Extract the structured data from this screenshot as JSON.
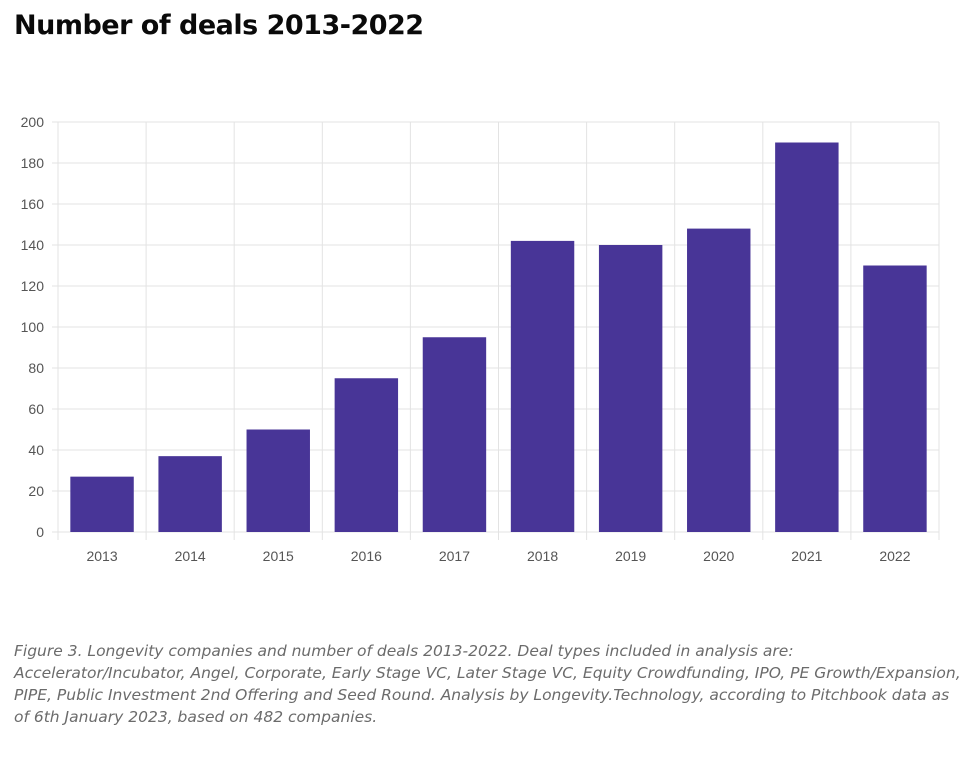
{
  "title": "Number of deals 2013-2022",
  "caption": "Figure 3. Longevity companies and number of deals 2013-2022. Deal types included in analysis are: Accelerator/Incubator, Angel, Corporate, Early Stage VC, Later Stage VC, Equity Crowdfunding, IPO, PE Growth/Expansion, PIPE, Public Investment 2nd Offering and Seed Round. Analysis by Longevity.Technology, according to Pitchbook data as of 6th January 2023, based on 482 companies.",
  "colors": {
    "bar": "#483597",
    "grid": "#e3e3e3",
    "axis_text": "#555555"
  },
  "chart_data": {
    "type": "bar",
    "title": "Number of deals 2013-2022",
    "categories": [
      "2013",
      "2014",
      "2015",
      "2016",
      "2017",
      "2018",
      "2019",
      "2020",
      "2021",
      "2022"
    ],
    "values": [
      27,
      37,
      50,
      75,
      95,
      142,
      140,
      148,
      190,
      130
    ],
    "xlabel": "",
    "ylabel": "",
    "ylim": [
      0,
      200
    ],
    "yticks": [
      0,
      20,
      40,
      60,
      80,
      100,
      120,
      140,
      160,
      180,
      200
    ],
    "grid": true,
    "legend": "none"
  }
}
